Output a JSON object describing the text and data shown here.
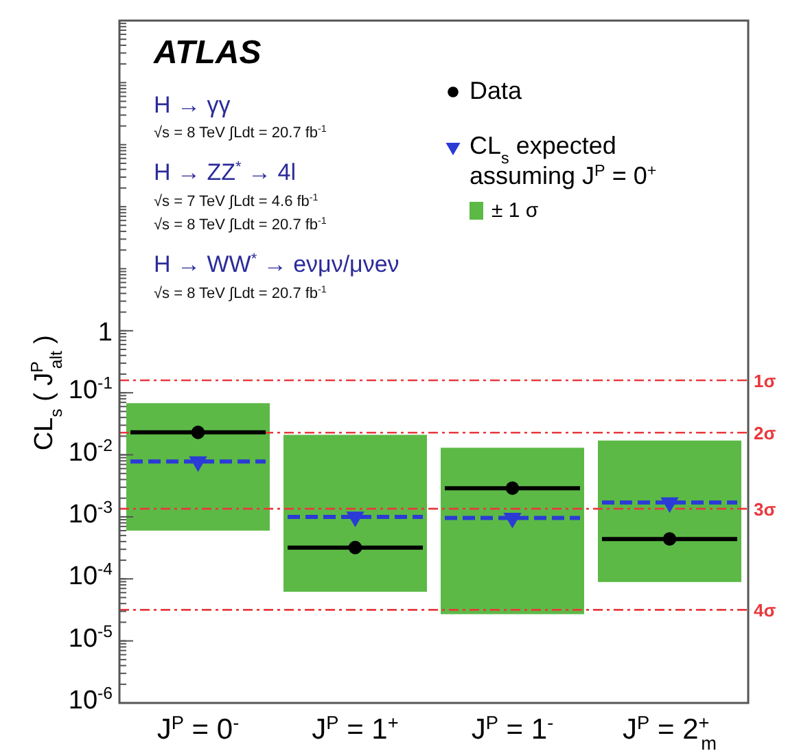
{
  "chart_data": {
    "type": "bar",
    "title": "ATLAS",
    "categories": [
      "J$^{P}$ = 0$^{-}$",
      "J$^{P}$ = 1$^{+}$",
      "J$^{P}$ = 1$^{-}$",
      "J$^{P}$ = 2$^{+}$$_{m}$"
    ],
    "ylabel": "CL$_{s}$ ( J$^{P}$$_{alt}$ )",
    "log": "y",
    "ylim": [
      1e-06,
      100000
    ],
    "yticks": [
      {
        "value": 1e-06,
        "label": "10$^{-6}$"
      },
      {
        "value": 1e-05,
        "label": "10$^{-5}$"
      },
      {
        "value": 0.0001,
        "label": "10$^{-4}$"
      },
      {
        "value": 0.001,
        "label": "10$^{-3}$"
      },
      {
        "value": 0.01,
        "label": "10$^{-2}$"
      },
      {
        "value": 0.1,
        "label": "10$^{-1}$"
      },
      1
    ],
    "series": [
      {
        "name": "Data",
        "type": "scatter",
        "color": "#000000",
        "marker": "circle",
        "values": [
          0.023,
          0.00032,
          0.0029,
          0.00044
        ]
      },
      {
        "name": "CL$_{s}$ expected assuming J$^{P}$ = 0$^{+}$",
        "type": "scatter",
        "color": "#2b3bd6",
        "marker": "triangle",
        "line_style": "dashed",
        "values": [
          0.0078,
          0.001,
          0.00096,
          0.0017
        ]
      },
      {
        "name": "± 1 σ",
        "color": "#5cb946",
        "base": [
          0.0006,
          6.2e-05,
          2.7e-05,
          8.9e-05
        ],
        "values": [
          0.0674,
          0.020938,
          0.012973,
          0.016911
        ]
      }
    ],
    "ref_lines": [
      {
        "axis": "y",
        "value": 0.159,
        "label": "1σ",
        "color": "#e8383d",
        "line_style": "dashed"
      },
      {
        "axis": "y",
        "value": 0.0228,
        "label": "2σ",
        "color": "#e8383d",
        "line_style": "dashed"
      },
      {
        "axis": "y",
        "value": 0.00135,
        "label": "3σ",
        "color": "#e8383d",
        "line_style": "dashed"
      },
      {
        "axis": "y",
        "value": 3.17e-05,
        "label": "4σ",
        "color": "#e8383d",
        "line_style": "dashed"
      }
    ],
    "legend": "top right",
    "annotations": [
      "H → γγ",
      "√s = 8 TeV ∫Ldt = 20.7 fb$^{-1}$",
      "H → ZZ$^{*}$ → 4l",
      "√s = 7 TeV ∫Ldt = 4.6 fb$^{-1}$",
      "√s = 8 TeV ∫Ldt = 20.7 fb$^{-1}$",
      "H → WW$^{*}$ → eνμν/μνeν",
      "√s = 8 TeV ∫Ldt = 20.7 fb$^{-1}$"
    ]
  }
}
